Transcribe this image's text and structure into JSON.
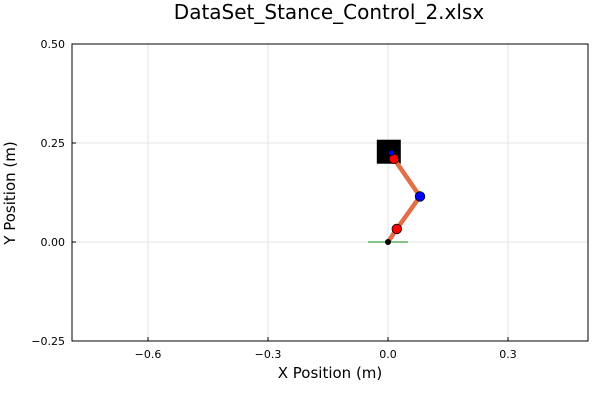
{
  "chart_data": {
    "type": "scatter",
    "title": "DataSet_Stance_Control_2.xlsx",
    "xlabel": "X Position (m)",
    "ylabel": "Y Position (m)",
    "xlim": [
      -0.79,
      0.5
    ],
    "ylim": [
      -0.25,
      0.5
    ],
    "xticks": [
      -0.6,
      -0.3,
      0.0,
      0.3
    ],
    "xtick_labels": [
      "−0.6",
      "−0.3",
      "0.0",
      "0.3"
    ],
    "yticks": [
      -0.25,
      0.0,
      0.25,
      0.5
    ],
    "ytick_labels": [
      "−0.25",
      "0.00",
      "0.25",
      "0.50"
    ],
    "grid": true,
    "legend": "none",
    "ground_line": {
      "x": [
        -0.05,
        0.05
      ],
      "y": 0.0,
      "color": "#2ca02c"
    },
    "leg_segments": [
      {
        "x": [
          0.0,
          0.022
        ],
        "y": [
          0.0,
          0.033
        ],
        "color": "#e26f46"
      },
      {
        "x": [
          0.022,
          0.08
        ],
        "y": [
          0.033,
          0.115
        ],
        "color": "#e26f46"
      },
      {
        "x": [
          0.08,
          0.015
        ],
        "y": [
          0.115,
          0.21
        ],
        "color": "#e26f46"
      }
    ],
    "hip_marker": {
      "x": 0.002,
      "y": 0.228,
      "shape": "square",
      "color": "#000000"
    },
    "points": [
      {
        "x": 0.0,
        "y": 0.0,
        "color": "#000000",
        "size": "small"
      },
      {
        "x": 0.022,
        "y": 0.033,
        "color": "#ff0000",
        "size": "large"
      },
      {
        "x": 0.08,
        "y": 0.115,
        "color": "#0000ff",
        "size": "large"
      },
      {
        "x": 0.015,
        "y": 0.21,
        "color": "#ff0000",
        "size": "large"
      },
      {
        "x": 0.008,
        "y": 0.225,
        "color": "#0000ff",
        "size": "small"
      }
    ]
  }
}
